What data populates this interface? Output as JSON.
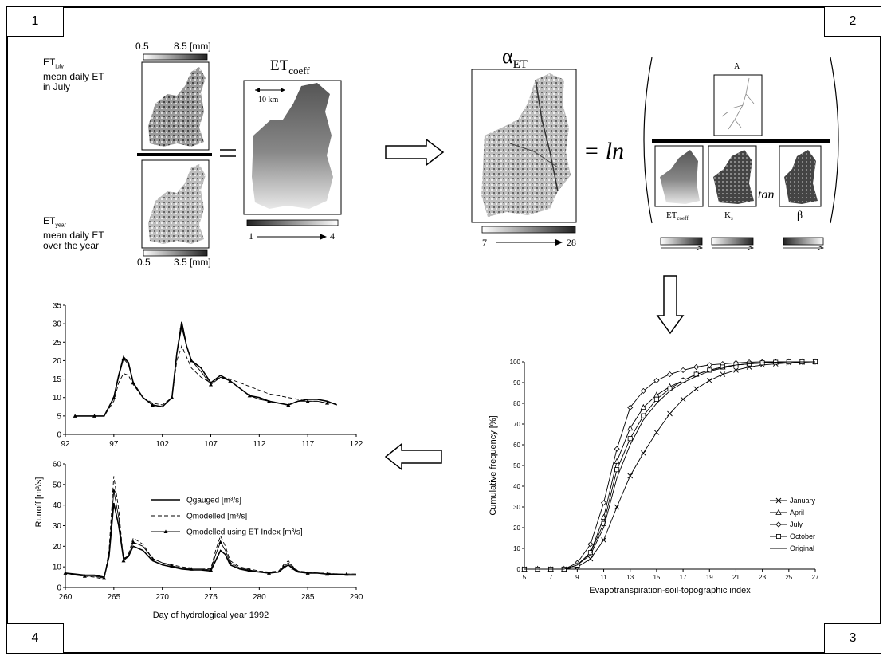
{
  "corners": {
    "c1": "1",
    "c2": "2",
    "c3": "3",
    "c4": "4"
  },
  "panel1": {
    "july_scale_min": "0.5",
    "july_scale_max": "8.5 [mm]",
    "et_july_base": "ET",
    "et_july_sub": "july",
    "et_july_line1": "mean daily ET",
    "et_july_line2": "in July",
    "et_year_base": "ET",
    "et_year_sub": "year",
    "et_year_line1": "mean daily ET",
    "et_year_line2": "over the year",
    "year_scale_min": "0.5",
    "year_scale_max": "3.5 [mm]",
    "equals": "=",
    "coeff_title_base": "ET",
    "coeff_title_sub": "coeff",
    "scale_bar": "10 km",
    "coeff_min": "1",
    "coeff_max": "4"
  },
  "panel2": {
    "alpha_base": "α",
    "alpha_sub": "ET",
    "equals_ln": "= ln",
    "A_label": "A",
    "tan": "tan",
    "etcoeff_base": "ET",
    "etcoeff_sub": "coeff",
    "ks_base": "K",
    "ks_sub": "s",
    "beta": "β",
    "alpha_min": "7",
    "alpha_max": "28"
  },
  "chart_data": [
    {
      "type": "line",
      "title": "",
      "xlabel": "Evapotranspiration-soil-topographic index",
      "ylabel": "Cumulative frequency [%]",
      "xlim": [
        5,
        27
      ],
      "ylim": [
        0,
        100
      ],
      "xticks": [
        5,
        7,
        9,
        11,
        13,
        15,
        17,
        19,
        21,
        23,
        25,
        27
      ],
      "yticks": [
        0,
        10,
        20,
        30,
        40,
        50,
        60,
        70,
        80,
        90,
        100
      ],
      "legend_position": "bottom-right",
      "series": [
        {
          "name": "January",
          "marker": "x",
          "x": [
            5,
            6,
            7,
            8,
            9,
            10,
            11,
            12,
            13,
            14,
            15,
            16,
            17,
            18,
            19,
            20,
            21,
            22,
            23,
            24,
            25,
            26,
            27
          ],
          "y": [
            0,
            0,
            0,
            0,
            1,
            5,
            14,
            30,
            45,
            56,
            66,
            75,
            82,
            87,
            91,
            94,
            96,
            97.5,
            98.5,
            99,
            99.5,
            99.8,
            100
          ]
        },
        {
          "name": "April",
          "marker": "triangle",
          "x": [
            5,
            6,
            7,
            8,
            9,
            10,
            11,
            12,
            13,
            14,
            15,
            16,
            17,
            18,
            19,
            20,
            21,
            22,
            23,
            24,
            25,
            26,
            27
          ],
          "y": [
            0,
            0,
            0,
            0,
            2,
            8,
            25,
            52,
            68,
            78,
            84,
            88,
            91,
            94,
            96,
            97.5,
            98.5,
            99,
            99.5,
            99.8,
            100,
            100,
            100
          ]
        },
        {
          "name": "July",
          "marker": "diamond",
          "x": [
            5,
            6,
            7,
            8,
            9,
            10,
            11,
            12,
            13,
            14,
            15,
            16,
            17,
            18,
            19,
            20,
            21,
            22,
            23,
            24,
            25,
            26,
            27
          ],
          "y": [
            0,
            0,
            0,
            0,
            3,
            12,
            32,
            58,
            78,
            86,
            91,
            94,
            96,
            97.5,
            98.5,
            99,
            99.5,
            99.8,
            100,
            100,
            100,
            100,
            100
          ]
        },
        {
          "name": "October",
          "marker": "square",
          "x": [
            5,
            6,
            7,
            8,
            9,
            10,
            11,
            12,
            13,
            14,
            15,
            16,
            17,
            18,
            19,
            20,
            21,
            22,
            23,
            24,
            25,
            26,
            27
          ],
          "y": [
            0,
            0,
            0,
            0,
            2,
            8,
            22,
            48,
            63,
            74,
            82,
            87,
            91,
            94,
            96,
            97.5,
            98.5,
            99,
            99.5,
            99.8,
            100,
            100,
            100
          ]
        },
        {
          "name": "Original",
          "marker": "none",
          "x": [
            5,
            6,
            7,
            8,
            9,
            10,
            11,
            12,
            13,
            14,
            15,
            16,
            17,
            18,
            19,
            20,
            21,
            22,
            23,
            24,
            25,
            26,
            27
          ],
          "y": [
            0,
            0,
            0,
            0,
            2,
            7,
            20,
            44,
            60,
            72,
            80,
            86,
            90,
            93,
            95.5,
            97,
            98.5,
            99,
            99.5,
            99.8,
            100,
            100,
            100
          ]
        }
      ]
    },
    {
      "type": "line",
      "title": "",
      "xlabel": "",
      "ylabel": "",
      "xlim": [
        92,
        122
      ],
      "ylim": [
        0,
        35
      ],
      "xticks": [
        92,
        97,
        102,
        107,
        112,
        117,
        122
      ],
      "yticks": [
        0,
        5,
        10,
        15,
        20,
        25,
        30,
        35
      ],
      "series": [
        {
          "name": "Qgauged [m³/s]",
          "style": "solid",
          "x": [
            93,
            94,
            95,
            96,
            97,
            97.5,
            98,
            98.5,
            99,
            100,
            101,
            102,
            103,
            103.5,
            104,
            104.5,
            105,
            106,
            107,
            108,
            109,
            110,
            111,
            112,
            113,
            114,
            115,
            116,
            117,
            118,
            119,
            120
          ],
          "y": [
            5,
            5,
            5,
            5,
            10,
            16,
            21,
            19.5,
            14,
            10,
            8,
            7.5,
            10,
            22,
            30.5,
            24,
            20,
            18,
            14,
            16,
            14.5,
            12.5,
            10.5,
            10,
            9,
            8.5,
            8,
            9,
            9.5,
            9.5,
            9,
            8
          ]
        },
        {
          "name": "Qmodelled [m³/s]",
          "style": "dashed",
          "x": [
            93,
            94,
            95,
            96,
            97,
            97.5,
            98,
            98.5,
            99,
            100,
            101,
            102,
            103,
            103.5,
            104,
            104.5,
            105,
            106,
            107,
            108,
            109,
            110,
            111,
            112,
            113,
            114,
            115,
            116,
            117,
            118,
            119,
            120
          ],
          "y": [
            5,
            5,
            5,
            5,
            9,
            14,
            16.5,
            16,
            13.5,
            10,
            8.5,
            8,
            10,
            20,
            24,
            21,
            18,
            15.5,
            14,
            15.5,
            15,
            14,
            13,
            12,
            11,
            10.5,
            10,
            9.5,
            9,
            9,
            8.5,
            8.5
          ]
        },
        {
          "name": "Qmodelled using ET-Index [m³/s]",
          "style": "triangle",
          "x": [
            93,
            94,
            95,
            96,
            97,
            97.5,
            98,
            98.5,
            99,
            100,
            101,
            102,
            103,
            103.5,
            104,
            104.5,
            105,
            106,
            107,
            108,
            109,
            110,
            111,
            112,
            113,
            114,
            115,
            116,
            117,
            118,
            119,
            120
          ],
          "y": [
            5,
            5,
            5,
            5,
            10,
            15.5,
            20.5,
            19,
            14,
            10,
            8,
            7.5,
            10,
            22,
            29,
            24,
            20,
            17,
            13.5,
            15.5,
            14.5,
            12.5,
            10.5,
            9.5,
            9,
            8.5,
            8,
            9,
            9,
            9,
            8.5,
            8.5
          ]
        }
      ]
    },
    {
      "type": "line",
      "title": "",
      "xlabel": "Day of hydrological year 1992",
      "ylabel": "Runoff [m³/s]",
      "xlim": [
        260,
        290
      ],
      "ylim": [
        0,
        60
      ],
      "xticks": [
        260,
        265,
        270,
        275,
        280,
        285,
        290
      ],
      "yticks": [
        0,
        10,
        20,
        30,
        40,
        50,
        60
      ],
      "legend_position": "top-center",
      "series": [
        {
          "name": "Qgauged [m³/s]",
          "style": "solid",
          "x": [
            260,
            261,
            262,
            263,
            264,
            264.5,
            265,
            265.5,
            266,
            266.5,
            267,
            268,
            269,
            270,
            271,
            272,
            273,
            274,
            275,
            275.5,
            276,
            276.5,
            277,
            278,
            279,
            280,
            281,
            282,
            282.5,
            283,
            283.5,
            284,
            285,
            286,
            287,
            288,
            289,
            290
          ],
          "y": [
            7,
            6.5,
            6,
            6,
            5,
            15,
            41,
            30,
            14,
            15,
            20,
            18,
            13,
            11,
            10,
            9,
            8.5,
            8.5,
            8,
            13,
            18,
            16,
            11,
            9,
            8,
            7.5,
            7,
            7.5,
            9.5,
            11,
            9,
            7.5,
            7,
            7,
            6.5,
            6.5,
            6,
            6
          ]
        },
        {
          "name": "Qmodelled [m³/s]",
          "style": "dashed",
          "x": [
            260,
            261,
            262,
            263,
            264,
            264.5,
            265,
            265.5,
            266,
            266.5,
            267,
            268,
            269,
            270,
            271,
            272,
            273,
            274,
            275,
            275.5,
            276,
            276.5,
            277,
            278,
            279,
            280,
            281,
            282,
            282.5,
            283,
            283.5,
            284,
            285,
            286,
            287,
            288,
            289,
            290
          ],
          "y": [
            7,
            6,
            5.5,
            5,
            4,
            18,
            54,
            38,
            13,
            16,
            24,
            21,
            14,
            12,
            11,
            10,
            9.5,
            9.5,
            9,
            18,
            25,
            20,
            13,
            10,
            9,
            8,
            7.5,
            8,
            11,
            13,
            10,
            8,
            7.5,
            7,
            7,
            6.5,
            6.5,
            6.5
          ]
        },
        {
          "name": "Qmodelled using ET-Index [m³/s]",
          "style": "triangle",
          "x": [
            260,
            261,
            262,
            263,
            264,
            264.5,
            265,
            265.5,
            266,
            266.5,
            267,
            268,
            269,
            270,
            271,
            272,
            273,
            274,
            275,
            275.5,
            276,
            276.5,
            277,
            278,
            279,
            280,
            281,
            282,
            282.5,
            283,
            283.5,
            284,
            285,
            286,
            287,
            288,
            289,
            290
          ],
          "y": [
            7,
            6,
            5.5,
            5.5,
            4.5,
            16,
            47,
            34,
            13,
            15,
            22,
            20,
            14,
            12,
            10.5,
            9.5,
            9,
            9,
            8.5,
            16,
            22,
            18,
            12,
            9.5,
            8.5,
            7.5,
            7,
            7.5,
            10,
            12,
            9.5,
            8,
            7,
            7,
            6.5,
            6.5,
            6.5,
            6.5
          ]
        }
      ]
    }
  ]
}
